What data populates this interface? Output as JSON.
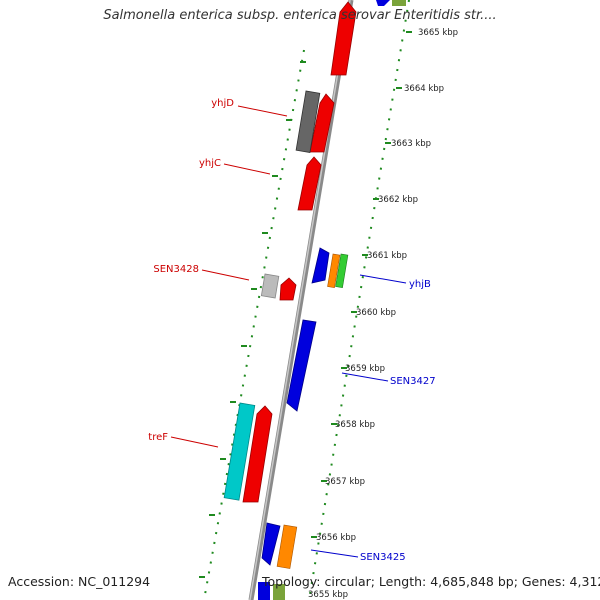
{
  "title": "Salmonella enterica subsp. enterica serovar Enteritidis str....",
  "accession": "Accession: NC_011294",
  "topology": "Topology: circular; Length: 4,685,848 bp; Genes: 4,312",
  "colors": {
    "backbone": "#8a8a8a",
    "tick_ring": "#1f8a1f",
    "label_left": "#cc0000",
    "label_right": "#0000cc",
    "red": "#ee0000",
    "blue": "#0000dd",
    "gray": "#666666",
    "light_gray": "#bbbbbb",
    "cyan": "#00c8c8",
    "orange": "#ff8800",
    "green": "#33cc33",
    "olive": "#7aa33a"
  },
  "ticks": [
    "3665 kbp",
    "3664 kbp",
    "3663 kbp",
    "3662 kbp",
    "3661 kbp",
    "3660 kbp",
    "3659 kbp",
    "3658 kbp",
    "3657 kbp",
    "3656 kbp",
    "3655 kbp"
  ],
  "labels": {
    "yhjD": "yhjD",
    "yhjC": "yhjC",
    "SEN3428": "SEN3428",
    "treF": "treF",
    "yhjB": "yhjB",
    "SEN3427": "SEN3427",
    "SEN3425": "SEN3425"
  }
}
